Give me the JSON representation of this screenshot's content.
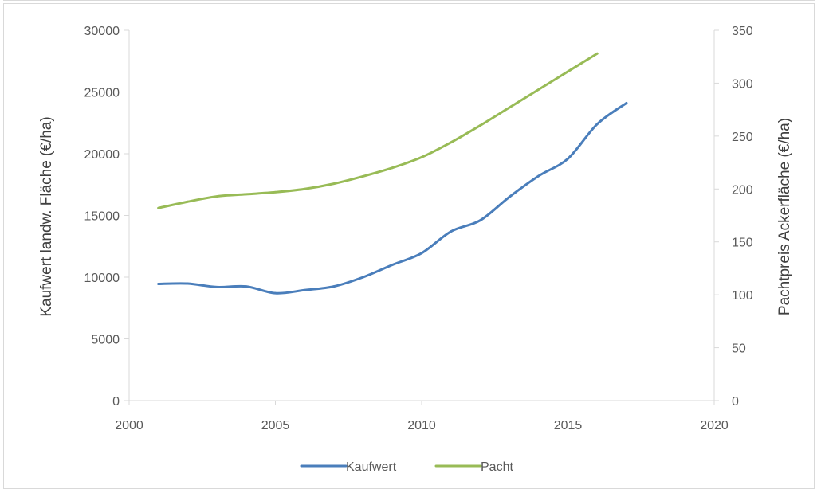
{
  "chart_data": {
    "type": "line",
    "title": "",
    "xlabel": "",
    "ylabel": "Kaufwert landw. Fläche (€/ha)",
    "y2label": "Pachtpreis Ackerfläche (€/ha)",
    "xlim": [
      2000,
      2020
    ],
    "ylim": [
      0,
      30000
    ],
    "y2lim": [
      0,
      350
    ],
    "x_ticks": [
      "2000",
      "2005",
      "2010",
      "2015",
      "2020"
    ],
    "y_ticks": [
      "0",
      "5000",
      "10000",
      "15000",
      "20000",
      "25000",
      "30000"
    ],
    "y2_ticks": [
      "0",
      "50",
      "100",
      "150",
      "200",
      "250",
      "300",
      "350"
    ],
    "grid": false,
    "legend_position": "bottom",
    "series": [
      {
        "name": "Kaufwert",
        "axis": "left",
        "color": "#4a7ebb",
        "x": [
          2001,
          2002,
          2003,
          2004,
          2005,
          2006,
          2007,
          2008,
          2009,
          2010,
          2011,
          2012,
          2013,
          2014,
          2015,
          2016,
          2017
        ],
        "values": [
          9450,
          9480,
          9200,
          9250,
          8700,
          8950,
          9250,
          10000,
          11000,
          11950,
          13700,
          14600,
          16500,
          18200,
          19600,
          22400,
          24100
        ]
      },
      {
        "name": "Pacht",
        "axis": "right",
        "color": "#98bb56",
        "x": [
          2001,
          2002,
          2003,
          2004,
          2005,
          2006,
          2007,
          2008,
          2009,
          2010,
          2011,
          2012,
          2013,
          2014,
          2015,
          2016
        ],
        "values": [
          182,
          188,
          193,
          195,
          197,
          200,
          205,
          212,
          220,
          230,
          244,
          260,
          277,
          294,
          311,
          328
        ]
      }
    ]
  }
}
